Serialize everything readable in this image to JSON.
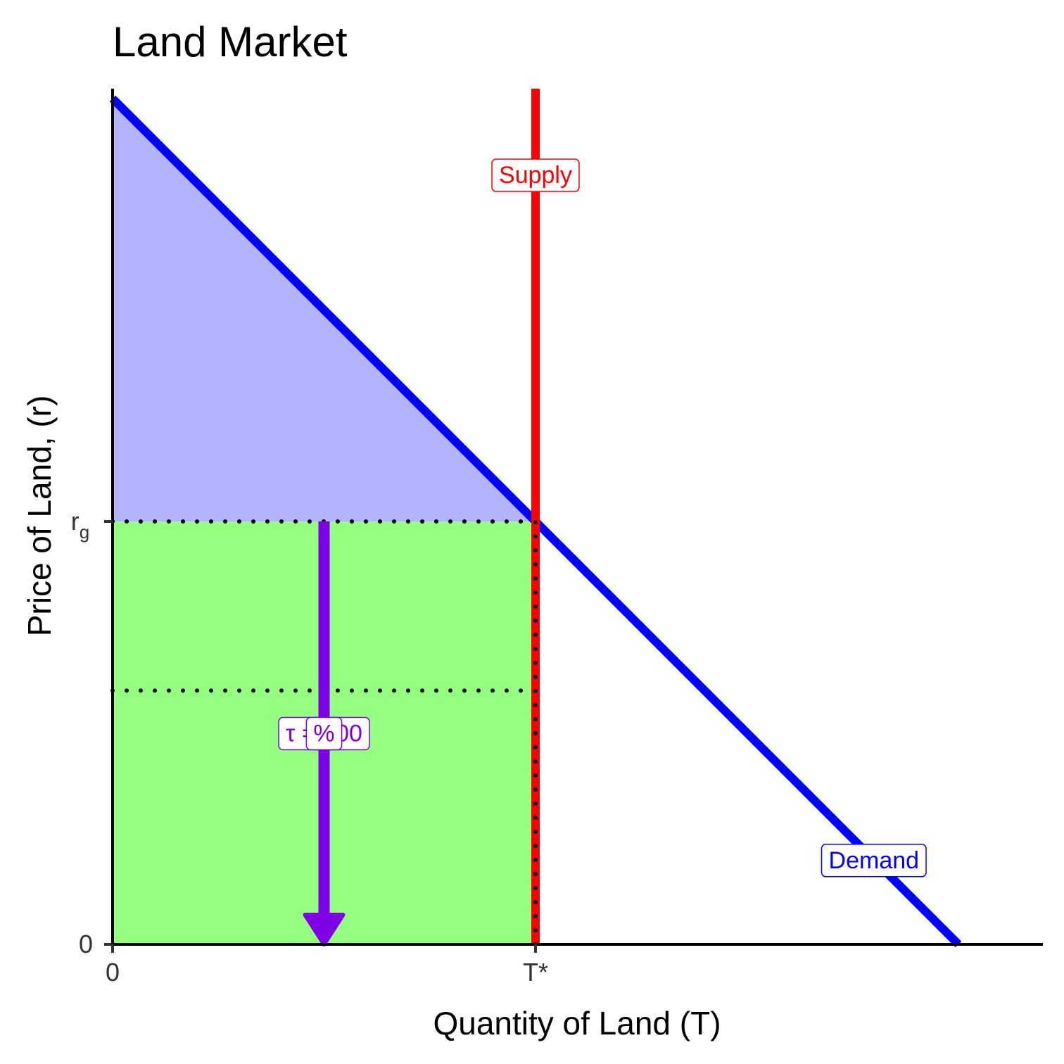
{
  "chart_data": {
    "type": "line",
    "title": "Land Market",
    "xlabel": "Quantity of Land (T)",
    "ylabel": "Price of Land, (r)",
    "xlim": [
      0,
      11
    ],
    "ylim": [
      0,
      11
    ],
    "x_ticks": [
      {
        "value": 0,
        "label": "0"
      },
      {
        "value": 5,
        "label": "T*"
      }
    ],
    "y_ticks": [
      {
        "value": 0,
        "label": "0",
        "sub": ""
      },
      {
        "value": 5,
        "label": "r",
        "sub": "g"
      }
    ],
    "series": [
      {
        "name": "Demand",
        "kind": "line",
        "color": "#0000ff",
        "x": [
          0,
          10
        ],
        "y": [
          10,
          0
        ]
      },
      {
        "name": "Supply",
        "kind": "vline",
        "color": "#ff0000",
        "x": 5
      }
    ],
    "areas": [
      {
        "kind": "consumer-surplus",
        "color": "#b3b3ff",
        "polygon": [
          [
            0,
            10
          ],
          [
            5,
            5
          ],
          [
            0,
            5
          ]
        ]
      },
      {
        "kind": "land-rent",
        "color": "#94ff80",
        "polygon": [
          [
            0,
            0
          ],
          [
            5,
            0
          ],
          [
            5,
            5
          ],
          [
            0,
            5
          ]
        ]
      }
    ],
    "reference_lines": [
      {
        "kind": "horizontal",
        "y": 5,
        "x_from": 0,
        "x_to": 5,
        "style": "dotted"
      },
      {
        "kind": "horizontal",
        "y": 3,
        "x_from": 0,
        "x_to": 5,
        "style": "dotted"
      },
      {
        "kind": "vertical",
        "x": 5,
        "y_from": 0,
        "y_to": 5,
        "style": "dotted"
      }
    ],
    "arrow": {
      "x": 2.5,
      "y_from": 5,
      "y_to": 0,
      "color": "#8000e6"
    },
    "labels": [
      {
        "text": "Supply",
        "x": 5,
        "y": 9.1,
        "color": "#ff0000"
      },
      {
        "text": "Demand",
        "x": 9.0,
        "y": 1.0,
        "color": "#0000ff"
      },
      {
        "text": "τ = 100",
        "x": 2.5,
        "y": 2.5,
        "color": "#8000e6"
      },
      {
        "text": "%",
        "x": 2.5,
        "y": 2.5,
        "color": "#8000e6"
      }
    ]
  }
}
